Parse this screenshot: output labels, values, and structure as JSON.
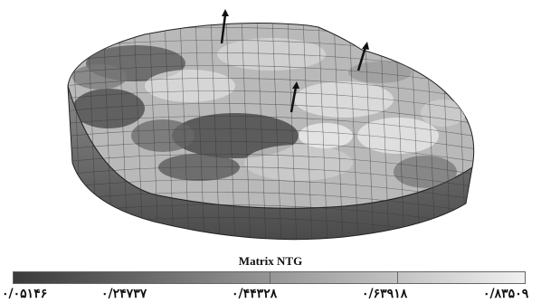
{
  "legend": {
    "title": "Matrix NTG",
    "ticks": [
      "۰/۰۵۱۴۶",
      "۰/۲۴۷۳۷",
      "۰/۴۴۳۲۸",
      "۰/۶۳۹۱۸",
      "۰/۸۳۵۰۹"
    ],
    "colors": [
      "#3a3a3a",
      "#f0f0f0"
    ]
  },
  "model": {
    "wells": 3
  }
}
